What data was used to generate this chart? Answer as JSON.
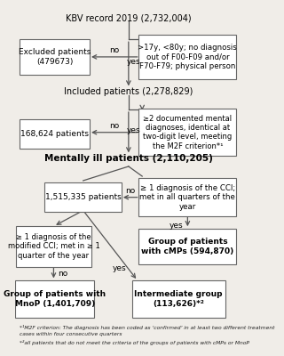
{
  "bg_color": "#f0ede8",
  "box_color": "#ffffff",
  "box_edge": "#666666",
  "arrow_color": "#555555",
  "text_color": "#000000",
  "footnotes": [
    "*¹M2F criterion: The diagnosis has been coded as ‘confirmed’ in at least two different treatment",
    "cases within four consecutive quarters",
    "*²all patients that do not meet the criteria of the groups of patients with cMPs or MnoP"
  ]
}
